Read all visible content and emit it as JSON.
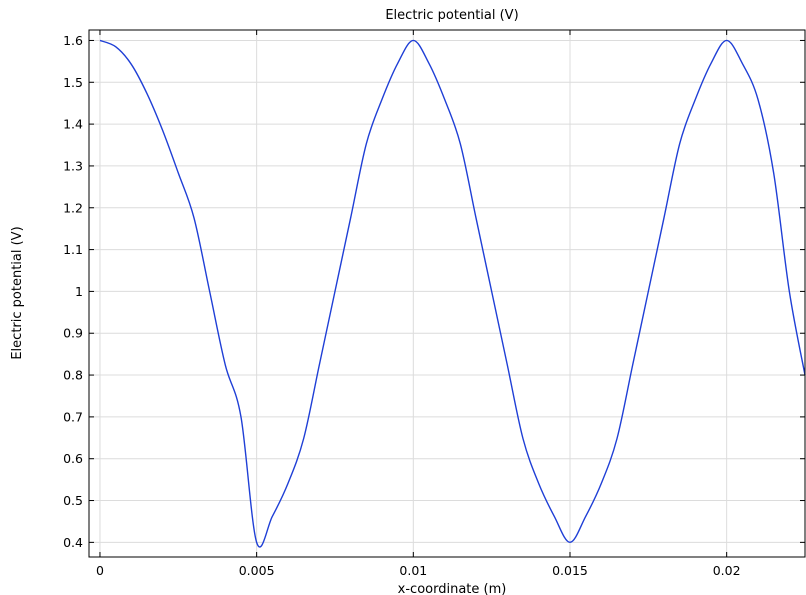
{
  "chart_data": {
    "type": "line",
    "title": "Electric potential (V)",
    "xlabel": "x-coordinate (m)",
    "ylabel": "Electric potential (V)",
    "xlim": [
      -0.00035,
      0.0225
    ],
    "ylim": [
      0.365,
      1.625
    ],
    "grid": true,
    "x_ticks": [
      0,
      0.005,
      0.01,
      0.015,
      0.02
    ],
    "x_tick_labels": [
      "0",
      "0.005",
      "0.01",
      "0.015",
      "0.02"
    ],
    "y_ticks": [
      0.4,
      0.5,
      0.6,
      0.7,
      0.8,
      0.9,
      1.0,
      1.1,
      1.2,
      1.3,
      1.4,
      1.5,
      1.6
    ],
    "y_tick_labels": [
      "0.4",
      "0.5",
      "0.6",
      "0.7",
      "0.8",
      "0.9",
      "1",
      "1.1",
      "1.2",
      "1.3",
      "1.4",
      "1.5",
      "1.6"
    ],
    "line_color": "#1f3fd6",
    "series": [
      {
        "x": [
          0,
          0.0005,
          0.001,
          0.0015,
          0.002,
          0.0025,
          0.003,
          0.0035,
          0.004,
          0.0045,
          0.005,
          0.0055,
          0.006,
          0.0065,
          0.007,
          0.0075,
          0.008,
          0.0085,
          0.009,
          0.0095,
          0.01,
          0.0105,
          0.011,
          0.0115,
          0.012,
          0.0125,
          0.013,
          0.0135,
          0.014,
          0.0145,
          0.015,
          0.0155,
          0.016,
          0.0165,
          0.017,
          0.0175,
          0.018,
          0.0185,
          0.019,
          0.0195,
          0.02,
          0.0205,
          0.021,
          0.0215,
          0.022,
          0.0225
        ],
        "y": [
          1.6,
          1.585,
          1.543,
          1.473,
          1.385,
          1.283,
          1.176,
          1.0,
          0.824,
          0.7,
          0.4,
          0.462,
          0.541,
          0.648,
          0.824,
          1.0,
          1.176,
          1.353,
          1.459,
          1.545,
          1.6,
          1.545,
          1.459,
          1.353,
          1.176,
          1.0,
          0.824,
          0.648,
          0.541,
          0.462,
          0.4,
          0.462,
          0.541,
          0.648,
          0.824,
          1.0,
          1.176,
          1.353,
          1.459,
          1.545,
          1.6,
          1.545,
          1.459,
          1.283,
          1.0,
          0.8
        ]
      }
    ]
  }
}
